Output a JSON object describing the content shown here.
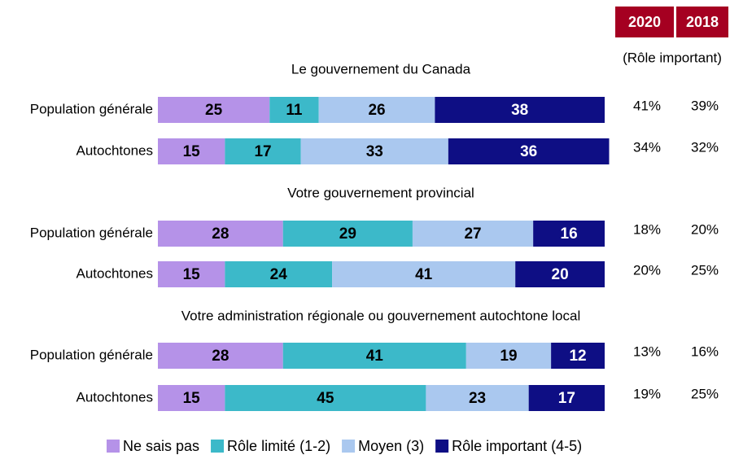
{
  "chart_data": {
    "type": "bar",
    "orientation": "horizontal",
    "stacked": true,
    "group_titles": [
      "Le gouvernement du Canada",
      "Votre gouvernement provincial",
      "Votre administration régionale ou gouvernement autochtone local"
    ],
    "categories": [
      "Population générale",
      "Autochtones",
      "Population générale",
      "Autochtones",
      "Population générale",
      "Autochtones"
    ],
    "series": [
      {
        "name": "Ne sais pas",
        "color": "#b592e8",
        "label_color": "#000000",
        "values": [
          25,
          15,
          28,
          15,
          28,
          15
        ]
      },
      {
        "name": "Rôle limité (1-2)",
        "color": "#3cb9c9",
        "label_color": "#000000",
        "values": [
          11,
          17,
          29,
          24,
          41,
          45
        ]
      },
      {
        "name": "Moyen (3)",
        "color": "#aac8ef",
        "label_color": "#000000",
        "values": [
          26,
          33,
          27,
          41,
          19,
          23
        ]
      },
      {
        "name": "Rôle important (4-5)",
        "color": "#0e0e84",
        "label_color": "#ffffff",
        "values": [
          38,
          36,
          16,
          20,
          12,
          17
        ]
      }
    ],
    "columns_note": "(Rôle important)",
    "columns_color": "#a50021",
    "columns": [
      {
        "name": "2020",
        "values": [
          41,
          34,
          18,
          20,
          13,
          19
        ],
        "value_labels": [
          "41%",
          "34%",
          "18%",
          "20%",
          "13%",
          "19%"
        ]
      },
      {
        "name": "2018",
        "values": [
          39,
          32,
          20,
          25,
          16,
          25
        ],
        "value_labels": [
          "39%",
          "32%",
          "20%",
          "25%",
          "16%",
          "25%"
        ]
      }
    ],
    "xlim": [
      0,
      100
    ]
  }
}
